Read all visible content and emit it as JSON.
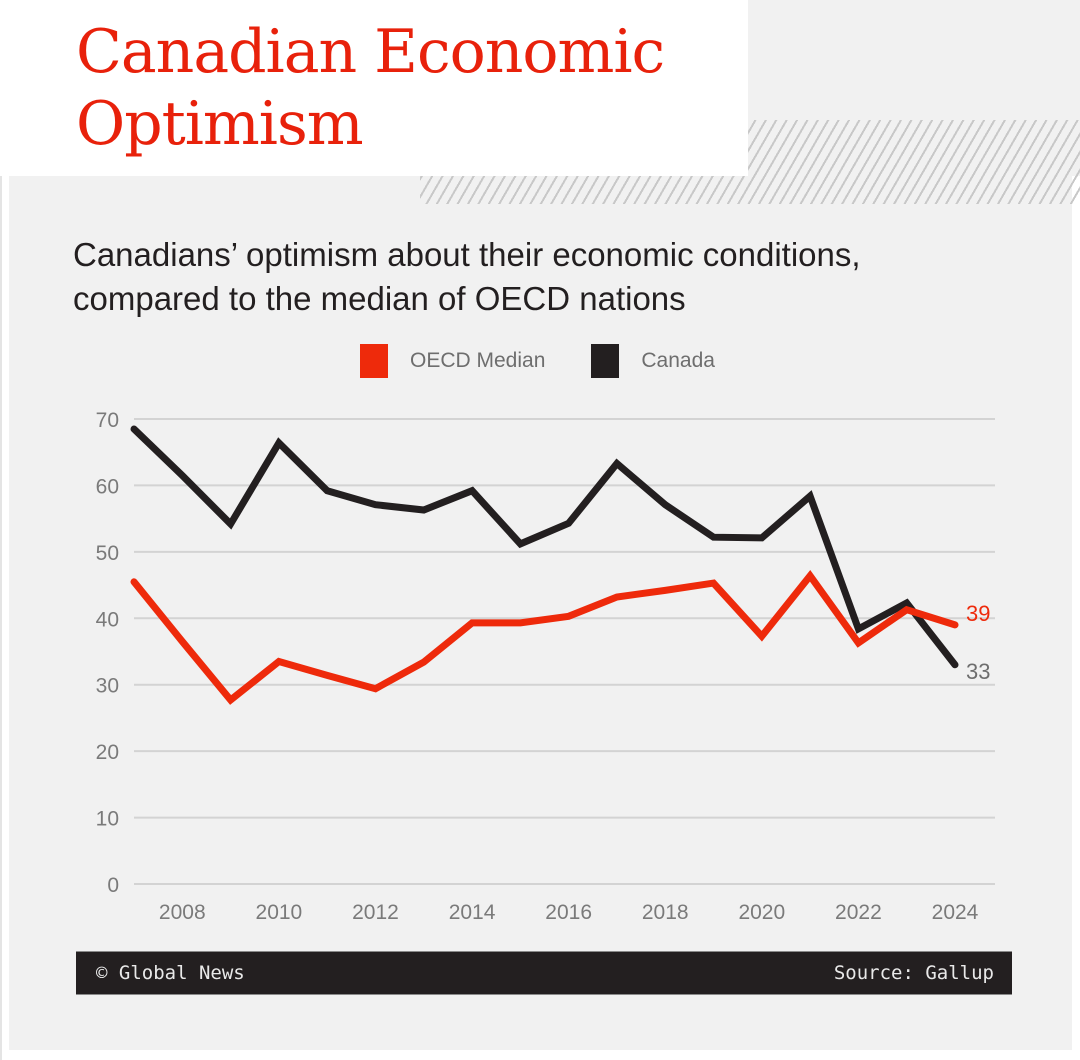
{
  "header": {
    "title_line1": "Canadian Economic",
    "title_line2": "Optimism",
    "subtitle_line1": "Canadians’ optimism about their economic conditions,",
    "subtitle_line2": "compared to the median of OECD nations"
  },
  "legend": [
    {
      "label": "OECD Median",
      "color": "#ee2a0b"
    },
    {
      "label": "Canada",
      "color": "#231f20"
    }
  ],
  "footer": {
    "credit": "© Global News",
    "source": "Source: Gallup"
  },
  "chart_data": {
    "type": "line",
    "title": "Canadians’ optimism about their economic conditions, compared to the median of OECD nations",
    "xlabel": "",
    "ylabel": "",
    "x": [
      2007,
      2008,
      2009,
      2010,
      2011,
      2012,
      2013,
      2014,
      2015,
      2016,
      2017,
      2018,
      2019,
      2020,
      2021,
      2022,
      2023,
      2024
    ],
    "x_ticks": [
      "2008",
      "2010",
      "2012",
      "2014",
      "2016",
      "2018",
      "2020",
      "2022",
      "2024"
    ],
    "x_tick_values": [
      2008,
      2010,
      2012,
      2014,
      2016,
      2018,
      2020,
      2022,
      2024
    ],
    "y_ticks": [
      0,
      10,
      20,
      30,
      40,
      50,
      60,
      70
    ],
    "ylim": [
      0,
      70
    ],
    "xlim": [
      2007,
      2024
    ],
    "grid": true,
    "legend_position": "top-center",
    "series": [
      {
        "name": "OECD Median",
        "color": "#ee2a0b",
        "values": [
          45.5,
          36.5,
          27.7,
          33.5,
          31.4,
          29.4,
          33.4,
          39.3,
          39.3,
          40.3,
          43.2,
          44.2,
          45.3,
          37.3,
          46.4,
          36.3,
          41.3,
          39
        ],
        "end_label": "39"
      },
      {
        "name": "Canada",
        "color": "#231f20",
        "values": [
          68.5,
          61.5,
          54.2,
          66.4,
          59.2,
          57.1,
          56.3,
          59.2,
          51.2,
          54.3,
          63.3,
          57.1,
          52.2,
          52.1,
          58.4,
          38.4,
          42.3,
          33
        ],
        "end_label": "33"
      }
    ]
  }
}
